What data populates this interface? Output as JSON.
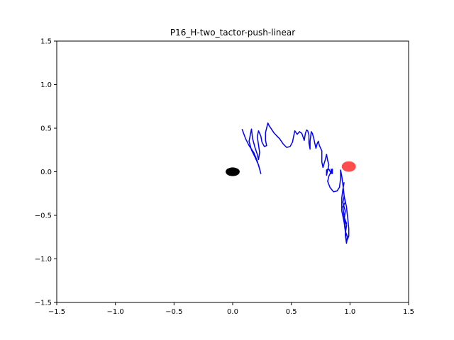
{
  "chart_data": {
    "type": "scatter",
    "title": "P16_H-two_tactor-push-linear",
    "xlabel": "",
    "ylabel": "",
    "xlim": [
      -1.5,
      1.5
    ],
    "ylim": [
      -1.5,
      1.5
    ],
    "xticks": [
      -1.5,
      -1.0,
      -0.5,
      0.0,
      0.5,
      1.0,
      1.5
    ],
    "yticks": [
      -1.5,
      -1.0,
      -0.5,
      0.0,
      0.5,
      1.0,
      1.5
    ],
    "xtick_labels": [
      "−1.5",
      "−1.0",
      "−0.5",
      "0.0",
      "0.5",
      "1.0",
      "1.5"
    ],
    "ytick_labels": [
      "−1.5",
      "−1.0",
      "−0.5",
      "0.0",
      "0.5",
      "1.0",
      "1.5"
    ],
    "grid": false,
    "markers": [
      {
        "x": 0.0,
        "y": 0.0,
        "rx": 0.06,
        "ry": 0.05,
        "color": "#000000",
        "opacity": 1.0
      },
      {
        "x": 0.99,
        "y": 0.06,
        "rx": 0.06,
        "ry": 0.06,
        "color": "#ff0000",
        "opacity": 0.7
      }
    ],
    "series": [
      {
        "color": "#0000ff",
        "points": [
          [
            0.08,
            0.49
          ],
          [
            0.11,
            0.38
          ],
          [
            0.14,
            0.3
          ],
          [
            0.18,
            0.22
          ],
          [
            0.21,
            0.12
          ],
          [
            0.23,
            0.03
          ],
          [
            0.24,
            -0.02
          ],
          [
            0.22,
            0.08
          ],
          [
            0.19,
            0.17
          ],
          [
            0.16,
            0.25
          ],
          [
            0.14,
            0.35
          ],
          [
            0.16,
            0.49
          ],
          [
            0.17,
            0.38
          ],
          [
            0.19,
            0.28
          ],
          [
            0.21,
            0.2
          ],
          [
            0.22,
            0.14
          ],
          [
            0.23,
            0.22
          ],
          [
            0.22,
            0.31
          ],
          [
            0.21,
            0.4
          ],
          [
            0.22,
            0.47
          ],
          [
            0.24,
            0.41
          ],
          [
            0.25,
            0.34
          ],
          [
            0.27,
            0.29
          ],
          [
            0.29,
            0.3
          ],
          [
            0.28,
            0.36
          ],
          [
            0.28,
            0.45
          ],
          [
            0.3,
            0.56
          ],
          [
            0.31,
            0.53
          ],
          [
            0.33,
            0.49
          ],
          [
            0.35,
            0.45
          ],
          [
            0.37,
            0.42
          ],
          [
            0.4,
            0.38
          ],
          [
            0.43,
            0.32
          ],
          [
            0.46,
            0.28
          ],
          [
            0.49,
            0.29
          ],
          [
            0.51,
            0.34
          ],
          [
            0.52,
            0.41
          ],
          [
            0.53,
            0.47
          ],
          [
            0.54,
            0.45
          ],
          [
            0.55,
            0.43
          ],
          [
            0.57,
            0.46
          ],
          [
            0.59,
            0.44
          ],
          [
            0.6,
            0.4
          ],
          [
            0.61,
            0.36
          ],
          [
            0.62,
            0.44
          ],
          [
            0.63,
            0.48
          ],
          [
            0.64,
            0.47
          ],
          [
            0.65,
            0.42
          ],
          [
            0.65,
            0.33
          ],
          [
            0.66,
            0.26
          ],
          [
            0.66,
            0.35
          ],
          [
            0.67,
            0.46
          ],
          [
            0.68,
            0.44
          ],
          [
            0.69,
            0.39
          ],
          [
            0.7,
            0.33
          ],
          [
            0.71,
            0.27
          ],
          [
            0.72,
            0.32
          ],
          [
            0.73,
            0.35
          ],
          [
            0.74,
            0.3
          ],
          [
            0.76,
            0.24
          ],
          [
            0.76,
            0.11
          ],
          [
            0.77,
            0.05
          ],
          [
            0.79,
            0.14
          ],
          [
            0.8,
            0.2
          ],
          [
            0.81,
            0.13
          ],
          [
            0.82,
            0.08
          ],
          [
            0.8,
            -0.04
          ],
          [
            0.8,
            0.02
          ],
          [
            0.82,
            0.03
          ],
          [
            0.84,
            -0.02
          ],
          [
            0.84,
            0.03
          ],
          [
            0.85,
            -0.02
          ],
          [
            0.85,
            0.03
          ],
          [
            0.82,
            -0.05
          ],
          [
            0.81,
            -0.11
          ],
          [
            0.83,
            -0.18
          ],
          [
            0.86,
            -0.23
          ],
          [
            0.89,
            -0.22
          ],
          [
            0.91,
            -0.18
          ],
          [
            0.92,
            -0.08
          ],
          [
            0.92,
            0.02
          ],
          [
            0.93,
            -0.05
          ],
          [
            0.94,
            -0.15
          ],
          [
            0.95,
            -0.27
          ],
          [
            0.96,
            -0.35
          ],
          [
            0.94,
            -0.4
          ],
          [
            0.95,
            -0.52
          ],
          [
            0.97,
            -0.59
          ],
          [
            0.96,
            -0.68
          ],
          [
            0.98,
            -0.75
          ],
          [
            0.97,
            -0.82
          ],
          [
            0.96,
            -0.72
          ],
          [
            0.97,
            -0.62
          ],
          [
            0.95,
            -0.55
          ],
          [
            0.96,
            -0.45
          ],
          [
            0.94,
            -0.35
          ],
          [
            0.95,
            -0.28
          ],
          [
            0.97,
            -0.4
          ],
          [
            0.98,
            -0.52
          ],
          [
            0.99,
            -0.65
          ],
          [
            0.99,
            -0.74
          ],
          [
            0.97,
            -0.8
          ],
          [
            0.96,
            -0.68
          ],
          [
            0.95,
            -0.58
          ],
          [
            0.93,
            -0.45
          ],
          [
            0.93,
            -0.3
          ],
          [
            0.94,
            -0.2
          ],
          [
            0.95,
            -0.12
          ]
        ]
      }
    ]
  }
}
